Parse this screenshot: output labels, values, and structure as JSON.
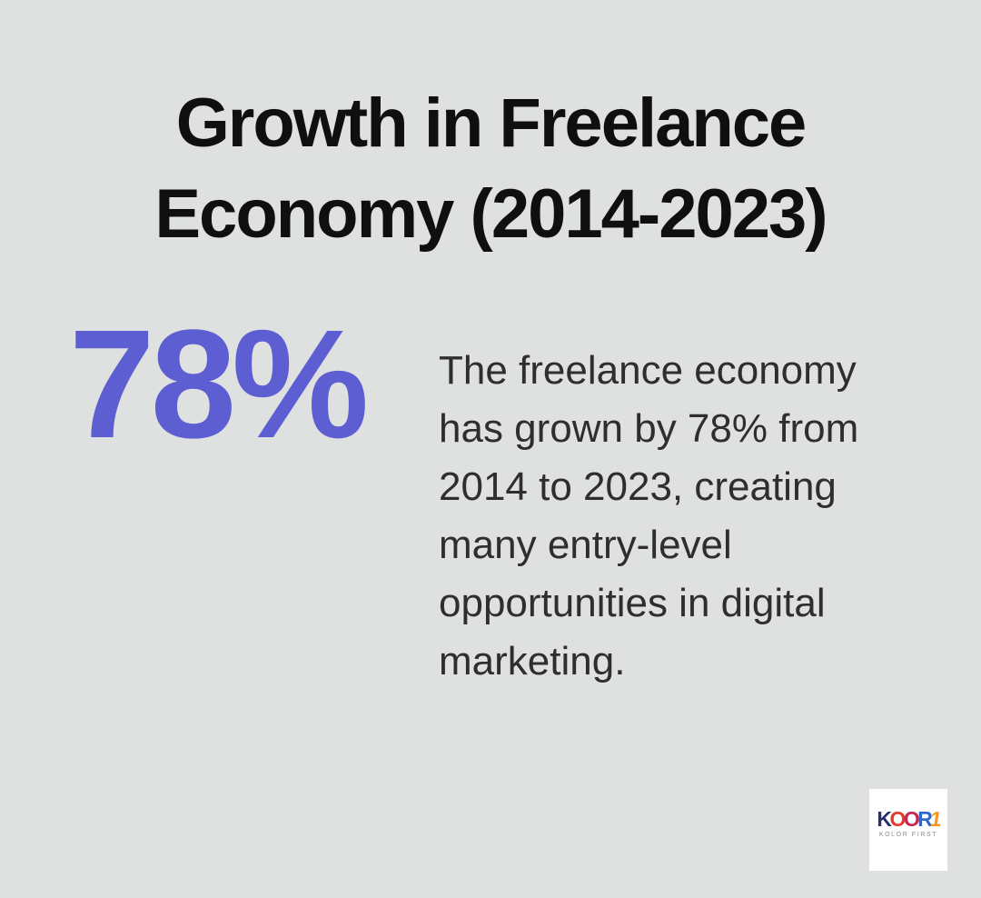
{
  "page": {
    "background": "#dfe0e0"
  },
  "title": {
    "lines": [
      "Growth in Freelance",
      "Economy (2014-2023)"
    ],
    "color": "#0f0f0f"
  },
  "stat": {
    "value": "78%",
    "color": "#5d5ed2"
  },
  "description": {
    "full_text": "The freelance economy has grown by 78% from 2014 to 2023, creating many entry-level opportunities in digital marketing.",
    "lines": [
      "The freelance economy",
      "has grown by 78% from",
      "2014 to 2023, creating",
      "many entry-level",
      "opportunities in digital",
      "marketing."
    ],
    "color": "#2e2e2e"
  },
  "logo": {
    "background": "#ffffff",
    "letters": [
      {
        "char": "K",
        "color": "#29306e"
      },
      {
        "char": "O",
        "color": "#e6392d"
      },
      {
        "char": "O",
        "color": "#c22850"
      },
      {
        "char": "R",
        "color": "#2f66c9"
      },
      {
        "char": "1",
        "color": "#f6991e"
      }
    ],
    "tagline": "KOLOR FIRST",
    "tagline_color": "#8a8a8a"
  }
}
